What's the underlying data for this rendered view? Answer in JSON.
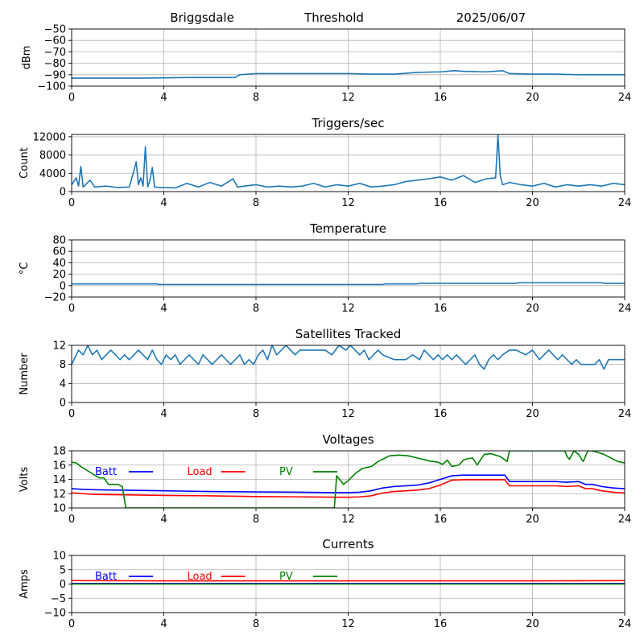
{
  "header": {
    "station": "Briggsdale",
    "title": "Threshold",
    "date": "2025/06/07"
  },
  "colors": {
    "series_default": "#1f77b4",
    "batt": "#0000ff",
    "load": "#ff0000",
    "pv": "#008000",
    "grid": "#b0b0b0"
  },
  "chart_data": [
    {
      "id": "threshold",
      "type": "line",
      "title": "",
      "xlabel": "",
      "ylabel": "dBm",
      "xlim": [
        0,
        24
      ],
      "ylim": [
        -100,
        -50
      ],
      "xticks": [
        0,
        4,
        8,
        12,
        16,
        20,
        24
      ],
      "yticks": [
        -100,
        -90,
        -80,
        -70,
        -60,
        -50
      ],
      "grid": true,
      "series": [
        {
          "color": "#1f77b4",
          "x": [
            0,
            1.5,
            3,
            5,
            7.1,
            7.3,
            8,
            9,
            10,
            11,
            12,
            13,
            14,
            15,
            16,
            16.6,
            17,
            18,
            18.7,
            19,
            20,
            21,
            22,
            23,
            24
          ],
          "y": [
            -93,
            -93,
            -93,
            -92.5,
            -92.5,
            -90,
            -89,
            -89,
            -89,
            -89,
            -89,
            -89.5,
            -89.5,
            -88,
            -87.5,
            -86.5,
            -87,
            -87.5,
            -86.5,
            -89,
            -89.5,
            -89.5,
            -90,
            -90,
            -90
          ]
        }
      ]
    },
    {
      "id": "triggers",
      "type": "line",
      "title": "Triggers/sec",
      "xlabel": "",
      "ylabel": "Count",
      "xlim": [
        0,
        24
      ],
      "ylim": [
        0,
        12500
      ],
      "xticks": [
        0,
        4,
        8,
        12,
        16,
        20,
        24
      ],
      "yticks": [
        0,
        4000,
        8000,
        12000
      ],
      "grid": true,
      "series": [
        {
          "color": "#1f77b4",
          "x": [
            0,
            0.2,
            0.3,
            0.4,
            0.5,
            0.8,
            1.0,
            1.5,
            2.0,
            2.5,
            2.7,
            2.8,
            2.9,
            3.0,
            3.1,
            3.2,
            3.3,
            3.4,
            3.5,
            3.6,
            3.8,
            4.0,
            4.5,
            5.0,
            5.5,
            6.0,
            6.5,
            7.0,
            7.2,
            7.5,
            8.0,
            8.5,
            9.0,
            9.5,
            10.0,
            10.5,
            11.0,
            11.5,
            12.0,
            12.5,
            13.0,
            13.5,
            14.0,
            14.5,
            15.0,
            15.5,
            16.0,
            16.5,
            17.0,
            17.5,
            18.0,
            18.4,
            18.5,
            18.6,
            18.7,
            19.0,
            19.5,
            20.0,
            20.5,
            21.0,
            21.5,
            22.0,
            22.5,
            23.0,
            23.5,
            24.0
          ],
          "y": [
            1500,
            3000,
            1200,
            5500,
            1000,
            2500,
            1000,
            1200,
            900,
            1000,
            4500,
            6500,
            1500,
            3000,
            1200,
            9800,
            1000,
            2500,
            5300,
            1000,
            900,
            900,
            800,
            1800,
            1000,
            2000,
            1200,
            2800,
            1000,
            1200,
            1500,
            1000,
            1200,
            1000,
            1200,
            1800,
            1000,
            1500,
            1200,
            1800,
            1000,
            1200,
            1500,
            2200,
            2500,
            2800,
            3200,
            2500,
            3500,
            2000,
            2800,
            3000,
            12500,
            3500,
            1500,
            2000,
            1500,
            1200,
            1800,
            1000,
            1500,
            1200,
            1500,
            1200,
            1800,
            1500
          ]
        }
      ]
    },
    {
      "id": "temperature",
      "type": "line",
      "title": "Temperature",
      "xlabel": "",
      "ylabel": "°C",
      "xlim": [
        0,
        24
      ],
      "ylim": [
        -20,
        80
      ],
      "xticks": [
        0,
        4,
        8,
        12,
        16,
        20,
        24
      ],
      "yticks": [
        -20,
        0,
        20,
        40,
        60,
        80
      ],
      "grid": true,
      "series": [
        {
          "color": "#1f77b4",
          "x": [
            0,
            3.7,
            3.8,
            8,
            12,
            13.5,
            13.6,
            15.0,
            15.1,
            19.3,
            19.4,
            23.0,
            23.1,
            24
          ],
          "y": [
            3,
            3,
            2,
            2,
            2,
            2,
            3,
            3,
            4,
            4,
            5,
            5,
            4,
            4
          ]
        }
      ]
    },
    {
      "id": "satellites",
      "type": "line",
      "title": "Satellites Tracked",
      "xlabel": "",
      "ylabel": "Number",
      "xlim": [
        0,
        24
      ],
      "ylim": [
        0,
        12
      ],
      "xticks": [
        0,
        4,
        8,
        12,
        16,
        20,
        24
      ],
      "yticks": [
        0,
        4,
        8,
        12
      ],
      "grid": true,
      "series": [
        {
          "color": "#1f77b4",
          "x": [
            0,
            0.1,
            0.3,
            0.5,
            0.7,
            0.9,
            1.1,
            1.3,
            1.5,
            1.7,
            1.9,
            2.1,
            2.3,
            2.5,
            2.7,
            2.9,
            3.1,
            3.3,
            3.5,
            3.7,
            3.9,
            4.1,
            4.3,
            4.5,
            4.7,
            4.9,
            5.1,
            5.3,
            5.5,
            5.7,
            5.9,
            6.1,
            6.3,
            6.5,
            6.7,
            6.9,
            7.1,
            7.3,
            7.5,
            7.7,
            7.9,
            8.1,
            8.3,
            8.5,
            8.7,
            8.9,
            9.1,
            9.3,
            9.5,
            9.7,
            9.9,
            10.5,
            11.0,
            11.3,
            11.6,
            11.9,
            12.1,
            12.3,
            12.5,
            12.7,
            12.9,
            13.1,
            13.3,
            13.5,
            14.0,
            14.5,
            14.8,
            15.1,
            15.3,
            15.5,
            15.7,
            15.9,
            16.1,
            16.3,
            16.5,
            16.7,
            16.9,
            17.1,
            17.3,
            17.5,
            17.7,
            17.9,
            18.1,
            18.3,
            18.5,
            18.7,
            19.0,
            19.3,
            19.7,
            20.0,
            20.3,
            20.5,
            20.7,
            20.9,
            21.1,
            21.3,
            21.5,
            21.7,
            21.9,
            22.1,
            22.3,
            22.5,
            22.7,
            22.9,
            23.1,
            23.3,
            23.5,
            23.7,
            24.0
          ],
          "y": [
            8,
            9,
            11,
            10,
            12,
            10,
            11,
            9,
            10,
            11,
            10,
            9,
            10,
            9,
            10,
            11,
            10,
            9,
            11,
            9,
            8,
            10,
            9,
            10,
            8,
            9,
            10,
            9,
            8,
            10,
            9,
            8,
            9,
            10,
            9,
            8,
            9,
            10,
            8,
            9,
            8,
            10,
            11,
            9,
            12,
            10,
            11,
            12,
            11,
            10,
            11,
            11,
            11,
            10,
            12,
            11,
            12,
            11,
            10,
            11,
            9,
            10,
            11,
            10,
            9,
            9,
            10,
            9,
            11,
            10,
            9,
            10,
            9,
            10,
            9,
            10,
            9,
            8,
            9,
            10,
            8,
            7,
            9,
            10,
            9,
            10,
            11,
            11,
            10,
            11,
            9,
            10,
            11,
            10,
            9,
            10,
            9,
            8,
            9,
            8,
            8,
            8,
            8,
            9,
            7,
            9,
            9,
            9,
            9
          ]
        }
      ]
    },
    {
      "id": "voltages",
      "type": "line",
      "title": "Voltages",
      "xlabel": "",
      "ylabel": "Volts",
      "xlim": [
        0,
        24
      ],
      "ylim": [
        10,
        18
      ],
      "xticks": [
        0,
        4,
        8,
        12,
        16,
        20,
        24
      ],
      "yticks": [
        10,
        12,
        14,
        16,
        18
      ],
      "grid": true,
      "legend": "top-left",
      "series": [
        {
          "name": "Batt",
          "color": "#0000ff",
          "x": [
            0,
            0.5,
            1,
            2,
            4,
            6,
            8,
            10,
            11.5,
            12,
            12.5,
            13,
            13.5,
            14,
            15,
            15.5,
            16,
            16.5,
            17,
            18,
            18.8,
            19,
            20,
            21,
            21.5,
            22,
            22.3,
            22.6,
            23,
            23.5,
            24
          ],
          "y": [
            12.7,
            12.6,
            12.55,
            12.5,
            12.4,
            12.3,
            12.25,
            12.2,
            12.15,
            12.15,
            12.2,
            12.4,
            12.8,
            13.0,
            13.2,
            13.5,
            14.0,
            14.5,
            14.6,
            14.6,
            14.6,
            13.7,
            13.7,
            13.7,
            13.6,
            13.7,
            13.3,
            13.3,
            13.0,
            12.8,
            12.7
          ]
        },
        {
          "name": "Load",
          "color": "#ff0000",
          "x": [
            0,
            0.5,
            1,
            2,
            4,
            6,
            8,
            10,
            11.5,
            12,
            12.5,
            13,
            13.5,
            14,
            15,
            15.5,
            16,
            16.5,
            17,
            18,
            18.8,
            19,
            20,
            21,
            21.5,
            22,
            22.3,
            22.6,
            23,
            23.5,
            24
          ],
          "y": [
            12.1,
            12.0,
            11.9,
            11.85,
            11.75,
            11.7,
            11.6,
            11.55,
            11.5,
            11.5,
            11.55,
            11.7,
            12.1,
            12.3,
            12.5,
            12.7,
            13.2,
            13.9,
            13.95,
            13.95,
            13.95,
            13.1,
            13.1,
            13.1,
            13.0,
            13.1,
            12.7,
            12.7,
            12.4,
            12.2,
            12.1
          ]
        },
        {
          "name": "PV",
          "color": "#008000",
          "x": [
            0,
            0.2,
            0.4,
            0.8,
            1.0,
            1.2,
            1.4,
            1.6,
            2.0,
            2.2,
            2.3,
            2.35,
            11.4,
            11.5,
            11.8,
            12.0,
            12.3,
            12.6,
            13.0,
            13.3,
            13.8,
            14.2,
            14.6,
            15.0,
            15.5,
            15.9,
            16.1,
            16.3,
            16.5,
            16.8,
            17.0,
            17.2,
            17.4,
            17.6,
            17.9,
            18.2,
            18.6,
            18.9,
            19.0,
            21.4,
            21.5,
            21.6,
            21.8,
            22.0,
            22.2,
            22.4,
            22.6,
            22.8,
            23.1,
            23.4,
            23.7,
            24.0
          ],
          "y": [
            16.4,
            16.3,
            15.8,
            15.0,
            14.6,
            14.2,
            14.2,
            13.3,
            13.3,
            13.0,
            11.0,
            10.0,
            10.0,
            14.5,
            13.3,
            13.8,
            14.8,
            15.5,
            15.8,
            16.5,
            17.3,
            17.4,
            17.3,
            17.0,
            16.6,
            16.4,
            16.1,
            16.7,
            15.8,
            16.0,
            16.7,
            16.9,
            17.0,
            16.0,
            17.5,
            17.6,
            17.2,
            16.5,
            18.0,
            18.0,
            17.2,
            16.8,
            18.0,
            17.5,
            16.5,
            18.0,
            18.0,
            17.8,
            17.5,
            17.0,
            16.5,
            16.3
          ]
        }
      ]
    },
    {
      "id": "currents",
      "type": "line",
      "title": "Currents",
      "xlabel": "",
      "ylabel": "Amps",
      "xlim": [
        0,
        24
      ],
      "ylim": [
        -10,
        10
      ],
      "xticks": [
        0,
        4,
        8,
        12,
        16,
        20,
        24
      ],
      "yticks": [
        -10,
        -5,
        0,
        5,
        10
      ],
      "grid": true,
      "legend": "top-left",
      "series": [
        {
          "name": "Batt",
          "color": "#0000ff",
          "x": [
            0,
            24
          ],
          "y": [
            0.2,
            0.2
          ]
        },
        {
          "name": "Load",
          "color": "#ff0000",
          "x": [
            0,
            4,
            8,
            12,
            16,
            20,
            24
          ],
          "y": [
            1.2,
            1.1,
            1.1,
            1.1,
            1.1,
            1.1,
            1.2
          ]
        },
        {
          "name": "PV",
          "color": "#008000",
          "x": [
            0,
            24
          ],
          "y": [
            0.0,
            0.0
          ]
        }
      ]
    }
  ]
}
